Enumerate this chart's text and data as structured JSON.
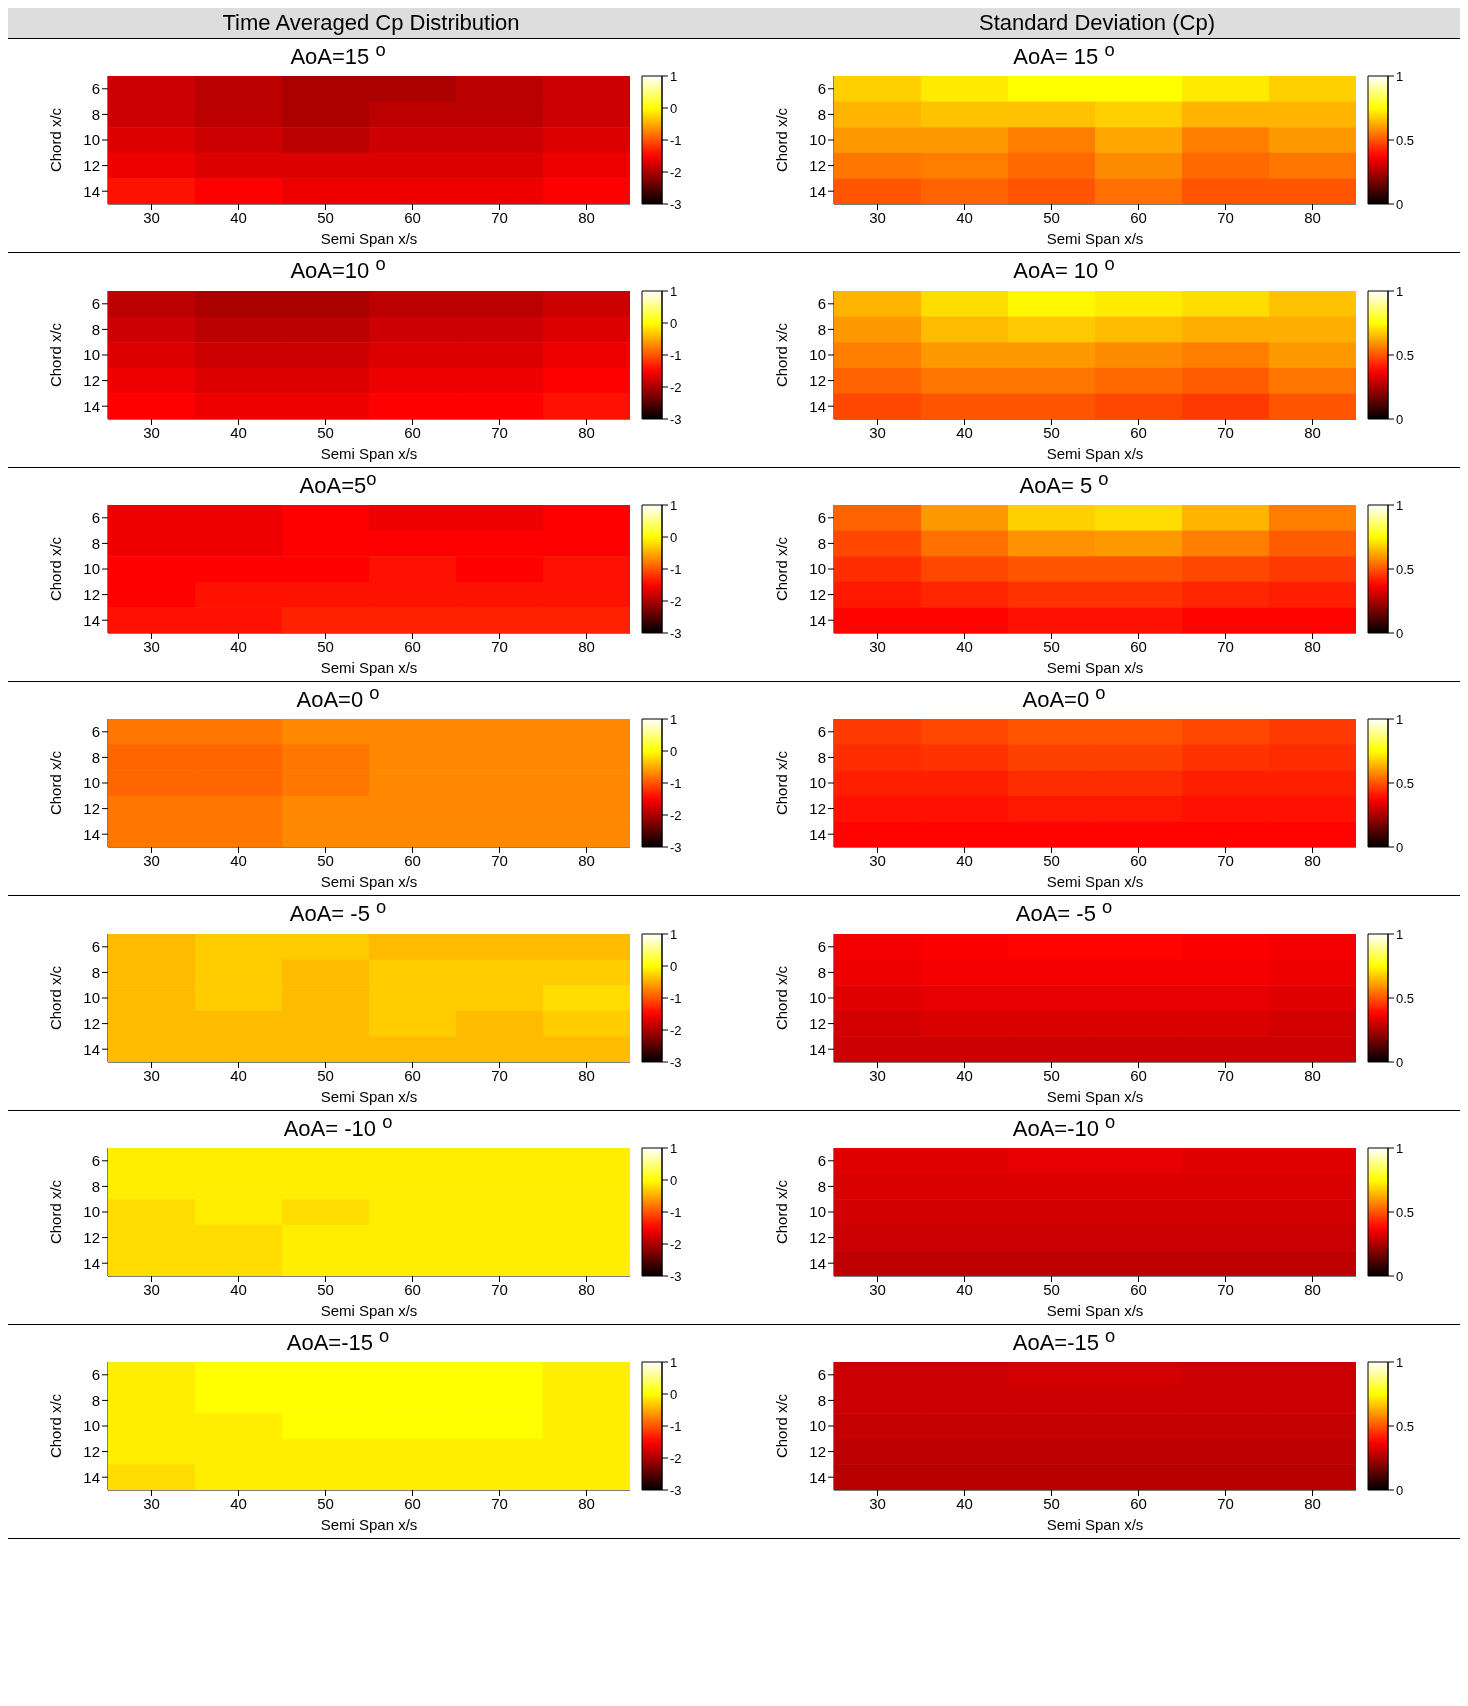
{
  "chart_data": [
    {
      "type": "heatmap",
      "annotations": [
        "Time Averaged Cp Distribution"
      ],
      "title": "AoA=15 $^{o}$",
      "xlabel": "Semi Span x/s",
      "ylabel": "Chord x/c",
      "categories": [
        "30",
        "40",
        "50",
        "60",
        "70",
        "80"
      ],
      "y_categories": [
        "6",
        "8",
        "10",
        "12",
        "14"
      ],
      "clim": [
        -3,
        1
      ],
      "cticks": [
        -3,
        -2,
        -1,
        0,
        1
      ],
      "cells": [
        [
          -1.8,
          -1.9,
          -2.0,
          -2.0,
          -1.9,
          -1.8
        ],
        [
          -1.8,
          -1.9,
          -2.0,
          -1.9,
          -1.9,
          -1.8
        ],
        [
          -1.7,
          -1.8,
          -1.9,
          -1.8,
          -1.8,
          -1.7
        ],
        [
          -1.6,
          -1.7,
          -1.7,
          -1.7,
          -1.7,
          -1.6
        ],
        [
          -1.4,
          -1.5,
          -1.6,
          -1.6,
          -1.6,
          -1.5
        ]
      ]
    },
    {
      "type": "heatmap",
      "annotations": [
        "Standard Deviation (Cp)"
      ],
      "title": "AoA= 15 $^{o}$",
      "xlabel": "Semi Span x/s",
      "ylabel": "Chord x/c",
      "categories": [
        "30",
        "40",
        "50",
        "60",
        "70",
        "80"
      ],
      "y_categories": [
        "6",
        "8",
        "10",
        "12",
        "14"
      ],
      "clim": [
        0,
        1
      ],
      "cticks": [
        0,
        0.5,
        1
      ],
      "cells": [
        [
          0.68,
          0.72,
          0.75,
          0.75,
          0.72,
          0.68
        ],
        [
          0.64,
          0.66,
          0.66,
          0.68,
          0.64,
          0.64
        ],
        [
          0.6,
          0.6,
          0.56,
          0.62,
          0.56,
          0.6
        ],
        [
          0.55,
          0.56,
          0.53,
          0.58,
          0.53,
          0.55
        ],
        [
          0.5,
          0.52,
          0.5,
          0.54,
          0.5,
          0.5
        ]
      ]
    },
    {
      "type": "heatmap",
      "title": "AoA=10 $^{o}$",
      "xlabel": "Semi Span x/s",
      "ylabel": "Chord x/c",
      "categories": [
        "30",
        "40",
        "50",
        "60",
        "70",
        "80"
      ],
      "y_categories": [
        "6",
        "8",
        "10",
        "12",
        "14"
      ],
      "clim": [
        -3,
        1
      ],
      "cticks": [
        -3,
        -2,
        -1,
        0,
        1
      ],
      "cells": [
        [
          -1.9,
          -2.0,
          -2.0,
          -1.9,
          -1.9,
          -1.8
        ],
        [
          -1.8,
          -1.9,
          -1.9,
          -1.8,
          -1.8,
          -1.7
        ],
        [
          -1.7,
          -1.8,
          -1.8,
          -1.7,
          -1.7,
          -1.6
        ],
        [
          -1.6,
          -1.7,
          -1.7,
          -1.6,
          -1.6,
          -1.5
        ],
        [
          -1.5,
          -1.6,
          -1.6,
          -1.5,
          -1.5,
          -1.4
        ]
      ]
    },
    {
      "type": "heatmap",
      "title": "AoA= 10 $^{o}$",
      "xlabel": "Semi Span x/s",
      "ylabel": "Chord x/c",
      "categories": [
        "30",
        "40",
        "50",
        "60",
        "70",
        "80"
      ],
      "y_categories": [
        "6",
        "8",
        "10",
        "12",
        "14"
      ],
      "clim": [
        0,
        1
      ],
      "cticks": [
        0,
        0.5,
        1
      ],
      "cells": [
        [
          0.64,
          0.7,
          0.74,
          0.72,
          0.7,
          0.66
        ],
        [
          0.6,
          0.65,
          0.67,
          0.65,
          0.63,
          0.63
        ],
        [
          0.56,
          0.6,
          0.6,
          0.58,
          0.56,
          0.6
        ],
        [
          0.52,
          0.55,
          0.55,
          0.53,
          0.51,
          0.55
        ],
        [
          0.48,
          0.5,
          0.5,
          0.48,
          0.46,
          0.5
        ]
      ]
    },
    {
      "type": "heatmap",
      "title": "AoA=5$^{o}$",
      "xlabel": "Semi Span x/s",
      "ylabel": "Chord x/c",
      "categories": [
        "30",
        "40",
        "50",
        "60",
        "70",
        "80"
      ],
      "y_categories": [
        "6",
        "8",
        "10",
        "12",
        "14"
      ],
      "clim": [
        -3,
        1
      ],
      "cticks": [
        -3,
        -2,
        -1,
        0,
        1
      ],
      "cells": [
        [
          -1.6,
          -1.6,
          -1.5,
          -1.6,
          -1.6,
          -1.5
        ],
        [
          -1.6,
          -1.6,
          -1.5,
          -1.5,
          -1.5,
          -1.5
        ],
        [
          -1.5,
          -1.5,
          -1.5,
          -1.4,
          -1.5,
          -1.4
        ],
        [
          -1.5,
          -1.4,
          -1.4,
          -1.4,
          -1.4,
          -1.4
        ],
        [
          -1.4,
          -1.4,
          -1.3,
          -1.3,
          -1.3,
          -1.3
        ]
      ]
    },
    {
      "type": "heatmap",
      "title": "AoA= 5 $^{o}$",
      "xlabel": "Semi Span x/s",
      "ylabel": "Chord x/c",
      "categories": [
        "30",
        "40",
        "50",
        "60",
        "70",
        "80"
      ],
      "y_categories": [
        "6",
        "8",
        "10",
        "12",
        "14"
      ],
      "clim": [
        0,
        1
      ],
      "cticks": [
        0,
        0.5,
        1
      ],
      "cells": [
        [
          0.52,
          0.6,
          0.68,
          0.7,
          0.64,
          0.56
        ],
        [
          0.48,
          0.54,
          0.59,
          0.6,
          0.56,
          0.51
        ],
        [
          0.44,
          0.48,
          0.5,
          0.5,
          0.48,
          0.46
        ],
        [
          0.41,
          0.43,
          0.45,
          0.45,
          0.43,
          0.42
        ],
        [
          0.38,
          0.38,
          0.4,
          0.4,
          0.38,
          0.38
        ]
      ]
    },
    {
      "type": "heatmap",
      "title": "AoA=0 $^{o}$",
      "xlabel": "Semi Span x/s",
      "ylabel": "Chord x/c",
      "categories": [
        "30",
        "40",
        "50",
        "60",
        "70",
        "80"
      ],
      "y_categories": [
        "6",
        "8",
        "10",
        "12",
        "14"
      ],
      "clim": [
        -3,
        1
      ],
      "cticks": [
        -3,
        -2,
        -1,
        0,
        1
      ],
      "cells": [
        [
          -0.8,
          -0.8,
          -0.7,
          -0.7,
          -0.7,
          -0.7
        ],
        [
          -0.9,
          -0.9,
          -0.8,
          -0.7,
          -0.7,
          -0.7
        ],
        [
          -0.9,
          -0.9,
          -0.8,
          -0.7,
          -0.7,
          -0.7
        ],
        [
          -0.8,
          -0.8,
          -0.7,
          -0.7,
          -0.7,
          -0.7
        ],
        [
          -0.8,
          -0.8,
          -0.7,
          -0.7,
          -0.7,
          -0.7
        ]
      ]
    },
    {
      "type": "heatmap",
      "title": "AoA=0 $^{o}$",
      "xlabel": "Semi Span x/s",
      "ylabel": "Chord x/c",
      "categories": [
        "30",
        "40",
        "50",
        "60",
        "70",
        "80"
      ],
      "y_categories": [
        "6",
        "8",
        "10",
        "12",
        "14"
      ],
      "clim": [
        0,
        1
      ],
      "cticks": [
        0,
        0.5,
        1
      ],
      "cells": [
        [
          0.46,
          0.48,
          0.5,
          0.5,
          0.48,
          0.46
        ],
        [
          0.44,
          0.45,
          0.47,
          0.47,
          0.45,
          0.44
        ],
        [
          0.42,
          0.42,
          0.44,
          0.44,
          0.42,
          0.42
        ],
        [
          0.4,
          0.4,
          0.41,
          0.41,
          0.4,
          0.4
        ],
        [
          0.38,
          0.38,
          0.38,
          0.38,
          0.38,
          0.38
        ]
      ]
    },
    {
      "type": "heatmap",
      "title": "AoA= -5 $^{o}$",
      "xlabel": "Semi Span x/s",
      "ylabel": "Chord x/c",
      "categories": [
        "30",
        "40",
        "50",
        "60",
        "70",
        "80"
      ],
      "y_categories": [
        "6",
        "8",
        "10",
        "12",
        "14"
      ],
      "clim": [
        -3,
        1
      ],
      "cticks": [
        -3,
        -2,
        -1,
        0,
        1
      ],
      "cells": [
        [
          -0.4,
          -0.3,
          -0.3,
          -0.4,
          -0.4,
          -0.4
        ],
        [
          -0.4,
          -0.3,
          -0.4,
          -0.3,
          -0.3,
          -0.3
        ],
        [
          -0.4,
          -0.3,
          -0.4,
          -0.3,
          -0.3,
          -0.2
        ],
        [
          -0.4,
          -0.4,
          -0.4,
          -0.3,
          -0.4,
          -0.3
        ],
        [
          -0.4,
          -0.4,
          -0.4,
          -0.4,
          -0.4,
          -0.4
        ]
      ]
    },
    {
      "type": "heatmap",
      "title": "AoA= -5 $^{o}$",
      "xlabel": "Semi Span x/s",
      "ylabel": "Chord x/c",
      "categories": [
        "30",
        "40",
        "50",
        "60",
        "70",
        "80"
      ],
      "y_categories": [
        "6",
        "8",
        "10",
        "12",
        "14"
      ],
      "clim": [
        0,
        1
      ],
      "cticks": [
        0,
        0.5,
        1
      ],
      "cells": [
        [
          0.36,
          0.37,
          0.38,
          0.38,
          0.37,
          0.36
        ],
        [
          0.35,
          0.36,
          0.36,
          0.36,
          0.36,
          0.35
        ],
        [
          0.33,
          0.34,
          0.34,
          0.34,
          0.34,
          0.33
        ],
        [
          0.31,
          0.32,
          0.32,
          0.32,
          0.32,
          0.31
        ],
        [
          0.3,
          0.3,
          0.3,
          0.3,
          0.3,
          0.3
        ]
      ]
    },
    {
      "type": "heatmap",
      "title": "AoA= -10 $^{o}$",
      "xlabel": "Semi Span x/s",
      "ylabel": "Chord x/c",
      "categories": [
        "30",
        "40",
        "50",
        "60",
        "70",
        "80"
      ],
      "y_categories": [
        "6",
        "8",
        "10",
        "12",
        "14"
      ],
      "clim": [
        -3,
        1
      ],
      "cticks": [
        -3,
        -2,
        -1,
        0,
        1
      ],
      "cells": [
        [
          -0.1,
          -0.1,
          -0.1,
          -0.1,
          -0.1,
          -0.1
        ],
        [
          -0.1,
          -0.1,
          -0.1,
          -0.1,
          -0.1,
          -0.1
        ],
        [
          -0.2,
          -0.1,
          -0.2,
          -0.1,
          -0.1,
          -0.1
        ],
        [
          -0.2,
          -0.2,
          -0.1,
          -0.1,
          -0.1,
          -0.1
        ],
        [
          -0.2,
          -0.2,
          -0.1,
          -0.1,
          -0.1,
          -0.1
        ]
      ]
    },
    {
      "type": "heatmap",
      "title": "AoA=-10 $^{o}$",
      "xlabel": "Semi Span x/s",
      "ylabel": "Chord x/c",
      "categories": [
        "30",
        "40",
        "50",
        "60",
        "70",
        "80"
      ],
      "y_categories": [
        "6",
        "8",
        "10",
        "12",
        "14"
      ],
      "clim": [
        0,
        1
      ],
      "cticks": [
        0,
        0.5,
        1
      ],
      "cells": [
        [
          0.33,
          0.33,
          0.34,
          0.34,
          0.33,
          0.33
        ],
        [
          0.32,
          0.32,
          0.32,
          0.32,
          0.32,
          0.32
        ],
        [
          0.31,
          0.31,
          0.31,
          0.31,
          0.31,
          0.31
        ],
        [
          0.3,
          0.3,
          0.3,
          0.3,
          0.3,
          0.3
        ],
        [
          0.28,
          0.28,
          0.28,
          0.28,
          0.28,
          0.28
        ]
      ]
    },
    {
      "type": "heatmap",
      "title": "AoA=-15 $^{o}$",
      "xlabel": "Semi Span x/s",
      "ylabel": "Chord x/c",
      "categories": [
        "30",
        "40",
        "50",
        "60",
        "70",
        "80"
      ],
      "y_categories": [
        "6",
        "8",
        "10",
        "12",
        "14"
      ],
      "clim": [
        -3,
        1
      ],
      "cticks": [
        -3,
        -2,
        -1,
        0,
        1
      ],
      "cells": [
        [
          -0.1,
          0,
          0,
          0,
          0,
          -0.1
        ],
        [
          -0.1,
          0,
          0,
          0,
          0,
          -0.1
        ],
        [
          -0.1,
          -0.1,
          0,
          0,
          0,
          -0.1
        ],
        [
          -0.1,
          -0.1,
          -0.1,
          -0.1,
          -0.1,
          -0.1
        ],
        [
          -0.2,
          -0.1,
          -0.1,
          -0.1,
          -0.1,
          -0.1
        ]
      ]
    },
    {
      "type": "heatmap",
      "title": "AoA=-15 $^{o}$",
      "xlabel": "Semi Span x/s",
      "ylabel": "Chord x/c",
      "categories": [
        "30",
        "40",
        "50",
        "60",
        "70",
        "80"
      ],
      "y_categories": [
        "6",
        "8",
        "10",
        "12",
        "14"
      ],
      "clim": [
        0,
        1
      ],
      "cticks": [
        0,
        0.5,
        1
      ],
      "cells": [
        [
          0.3,
          0.3,
          0.31,
          0.31,
          0.3,
          0.3
        ],
        [
          0.3,
          0.3,
          0.3,
          0.3,
          0.3,
          0.3
        ],
        [
          0.29,
          0.29,
          0.29,
          0.29,
          0.29,
          0.29
        ],
        [
          0.28,
          0.28,
          0.28,
          0.28,
          0.28,
          0.28
        ],
        [
          0.27,
          0.27,
          0.27,
          0.27,
          0.27,
          0.27
        ]
      ]
    }
  ]
}
